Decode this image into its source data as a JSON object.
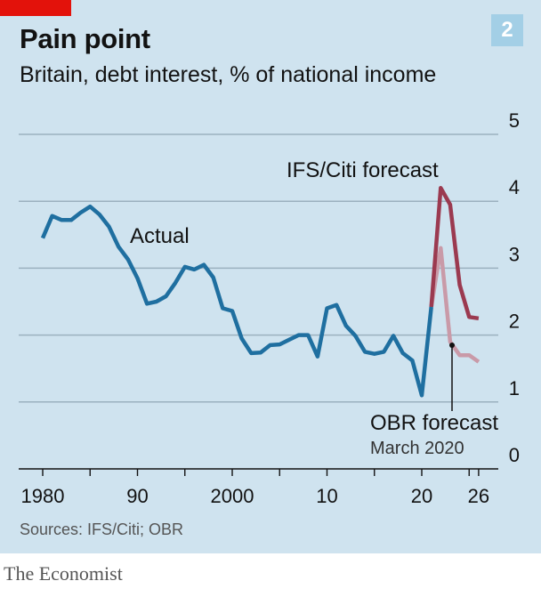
{
  "header": {
    "title": "Pain point",
    "subtitle": "Britain, debt interest, % of national income",
    "chart_number": "2"
  },
  "footer": {
    "source": "Sources: IFS/Citi; OBR",
    "publisher": "The Economist"
  },
  "colors": {
    "actual": "#1f6fa0",
    "ifs_citi": "#9b3a50",
    "obr": "#c99aa8",
    "background": "#cfe3ef",
    "brand": "#e3120b"
  },
  "chart_data": {
    "type": "line",
    "title": "Pain point",
    "subtitle": "Britain, debt interest, % of national income",
    "xlabel": "",
    "ylabel": "",
    "xlim": [
      1979,
      2028
    ],
    "ylim": [
      0,
      5
    ],
    "y_ticks": [
      0,
      1,
      2,
      3,
      4,
      5
    ],
    "x_tick_labels": [
      {
        "x": 1980,
        "label": "1980"
      },
      {
        "x": 1990,
        "label": "90"
      },
      {
        "x": 2000,
        "label": "2000"
      },
      {
        "x": 2010,
        "label": "10"
      },
      {
        "x": 2020,
        "label": "20"
      },
      {
        "x": 2026,
        "label": "26"
      }
    ],
    "grid": true,
    "series": [
      {
        "name": "Actual",
        "color": "#1f6fa0",
        "points": [
          [
            1980,
            3.45
          ],
          [
            1981,
            3.78
          ],
          [
            1982,
            3.72
          ],
          [
            1983,
            3.72
          ],
          [
            1984,
            3.83
          ],
          [
            1985,
            3.92
          ],
          [
            1986,
            3.8
          ],
          [
            1987,
            3.62
          ],
          [
            1988,
            3.32
          ],
          [
            1989,
            3.13
          ],
          [
            1990,
            2.85
          ],
          [
            1991,
            2.47
          ],
          [
            1992,
            2.5
          ],
          [
            1993,
            2.58
          ],
          [
            1994,
            2.78
          ],
          [
            1995,
            3.02
          ],
          [
            1996,
            2.98
          ],
          [
            1997,
            3.05
          ],
          [
            1998,
            2.86
          ],
          [
            1999,
            2.4
          ],
          [
            2000,
            2.36
          ],
          [
            2001,
            1.95
          ],
          [
            2002,
            1.73
          ],
          [
            2003,
            1.74
          ],
          [
            2004,
            1.85
          ],
          [
            2005,
            1.86
          ],
          [
            2006,
            1.93
          ],
          [
            2007,
            2.0
          ],
          [
            2008,
            2.0
          ],
          [
            2009,
            1.68
          ],
          [
            2010,
            2.4
          ],
          [
            2011,
            2.45
          ],
          [
            2012,
            2.14
          ],
          [
            2013,
            1.99
          ],
          [
            2014,
            1.75
          ],
          [
            2015,
            1.72
          ],
          [
            2016,
            1.75
          ],
          [
            2017,
            1.99
          ],
          [
            2018,
            1.73
          ],
          [
            2019,
            1.62
          ],
          [
            2020,
            1.1
          ],
          [
            2021,
            2.42
          ]
        ]
      },
      {
        "name": "IFS/Citi forecast",
        "color": "#9b3a50",
        "points": [
          [
            2021,
            2.42
          ],
          [
            2022,
            4.2
          ],
          [
            2023,
            3.95
          ],
          [
            2024,
            2.75
          ],
          [
            2025,
            2.27
          ],
          [
            2026,
            2.25
          ]
        ]
      },
      {
        "name": "OBR forecast",
        "color": "#c99aa8",
        "points": [
          [
            2021,
            2.42
          ],
          [
            2022,
            3.3
          ],
          [
            2023,
            1.9
          ],
          [
            2024,
            1.7
          ],
          [
            2025,
            1.7
          ],
          [
            2026,
            1.6
          ]
        ]
      }
    ],
    "annotations": {
      "actual": "Actual",
      "ifs": "IFS/Citi forecast",
      "obr": "OBR forecast",
      "obr_date": "March 2020"
    }
  }
}
